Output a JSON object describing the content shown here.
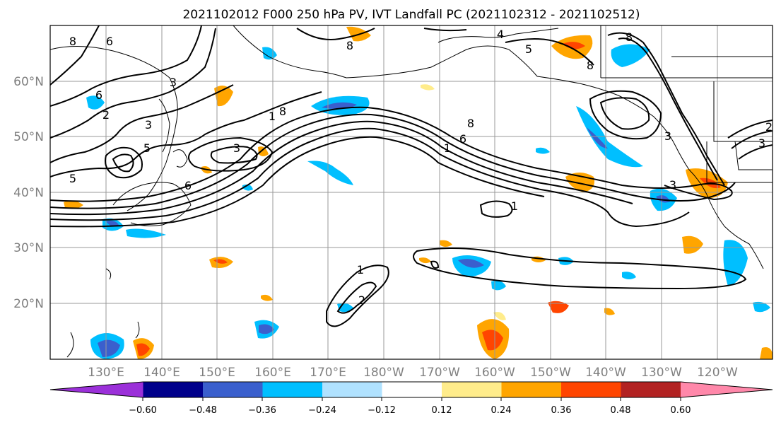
{
  "title": "2021102012 F000 250 hPa PV, IVT Landfall PC (2021102312 - 2021102512)",
  "lat_labels": [
    "60°N",
    "50°N",
    "40°N",
    "30°N",
    "20°N"
  ],
  "lon_labels": [
    "130°E",
    "140°E",
    "150°E",
    "160°E",
    "170°E",
    "180°W",
    "170°W",
    "160°W",
    "150°W",
    "140°W",
    "130°W",
    "120°W"
  ],
  "contour_labels": [
    "8",
    "6",
    "8",
    "4",
    "5",
    "8",
    "8",
    "3",
    "6",
    "2",
    "3",
    "1",
    "3",
    "5",
    "6",
    "5",
    "8",
    "1",
    "6",
    "8",
    "3",
    "2",
    "3",
    "1",
    "2",
    "1",
    "3"
  ],
  "colorbar": {
    "tick_labels": [
      "−0.60",
      "−0.48",
      "−0.36",
      "−0.24",
      "−0.12",
      "0.12",
      "0.24",
      "0.36",
      "0.48",
      "0.60"
    ],
    "colors": [
      "#9b30d9",
      "#00008b",
      "#3a5fcd",
      "#00bfff",
      "#b0e2ff",
      "#ffffff",
      "#ffec8b",
      "#ffa500",
      "#ff4500",
      "#b22222",
      "#ff88aa"
    ]
  },
  "colors": {
    "contour": "#000000",
    "grid": "#999999",
    "tick_label": "#808080"
  }
}
